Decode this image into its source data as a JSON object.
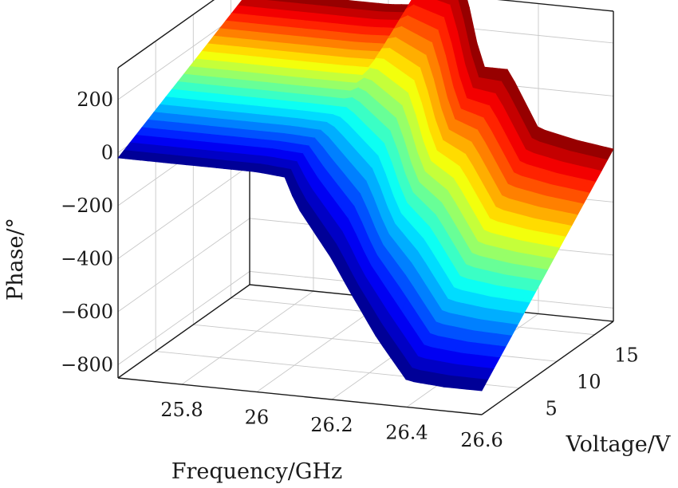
{
  "chart_data": {
    "type": "surface",
    "title": "",
    "xlabel": "Frequency/GHz",
    "ylabel": "Voltage/V",
    "zlabel": "Phase/°",
    "x_ticks": [
      "25.8",
      "26",
      "26.2",
      "26.4",
      "26.6"
    ],
    "y_ticks": [
      "5",
      "10",
      "15"
    ],
    "z_ticks": [
      "200",
      "0",
      "−200",
      "−400",
      "−600",
      "−800"
    ],
    "xlim": [
      25.63,
      26.6
    ],
    "ylim": [
      0,
      17.5
    ],
    "zlim": [
      -850,
      320
    ],
    "grid": true,
    "colormap": "jet",
    "series": [
      {
        "voltage_v": [
          0,
          17.5
        ],
        "frequency_ghz": [
          25.63,
          25.9,
          26.0,
          26.08,
          26.1,
          26.2,
          26.25,
          26.32,
          26.4,
          26.5,
          26.6
        ],
        "phase_deg": [
          [
            -20,
            -20,
            -20,
            -30,
            -120,
            -320,
            -440,
            -600,
            -750,
            -760,
            -760
          ],
          [
            260,
            260,
            260,
            270,
            400,
            380,
            60,
            60,
            -150,
            -180,
            -200
          ]
        ]
      }
    ]
  }
}
